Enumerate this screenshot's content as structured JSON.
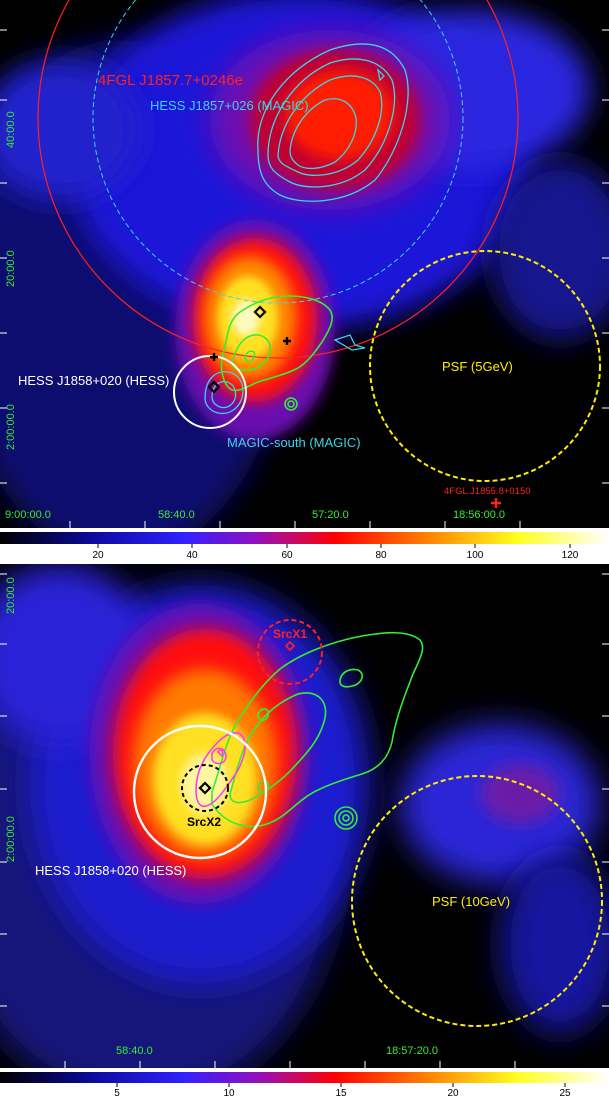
{
  "top": {
    "labels": {
      "fgl_main": "4FGL J1857.7+0246e",
      "hess_magic": "HESS J1857+026 (MAGIC)",
      "hess_source": "HESS J1858+020 (HESS)",
      "magic_south": "MAGIC-south (MAGIC)",
      "psf": "PSF (5GeV)",
      "fgl_second": "4FGL J1855.8+0150"
    },
    "ra_ticks": [
      "9:00:00.0",
      "58:40.0",
      "57:20.0",
      "18:56:00.0"
    ],
    "dec_ticks": [
      "40:00.0",
      "20:00.0",
      "2:00:00.0"
    ],
    "colorbar_ticks": [
      "20",
      "40",
      "60",
      "80",
      "100",
      "120"
    ]
  },
  "bottom": {
    "labels": {
      "srcx1": "SrcX1",
      "srcx2": "SrcX2",
      "hess_source": "HESS J1858+020 (HESS)",
      "psf": "PSF (10GeV)"
    },
    "ra_ticks": [
      "58:40.0",
      "18:57:20.0"
    ],
    "dec_ticks": [
      "20:00.0",
      "2:00:00.0"
    ],
    "colorbar_ticks": [
      "5",
      "10",
      "15",
      "20",
      "25"
    ]
  },
  "colors": {
    "ds9_map": [
      "#000000",
      "#0a0a9a",
      "#3020ff",
      "#9010c0",
      "#ff0000",
      "#ff8000",
      "#ffff20",
      "#ffffff"
    ],
    "tick_text": "#33ee33",
    "magic_contours": "#3ad5e8",
    "radio_contours": "#33ee33",
    "xray_contours": "#ff33ff",
    "psf_circle": "#ffee00",
    "fgl_circle": "#ff2020",
    "hess_circle": "#ffffff",
    "srcx1_circle": "#ff2020",
    "srcx2_circle": "#000000"
  }
}
